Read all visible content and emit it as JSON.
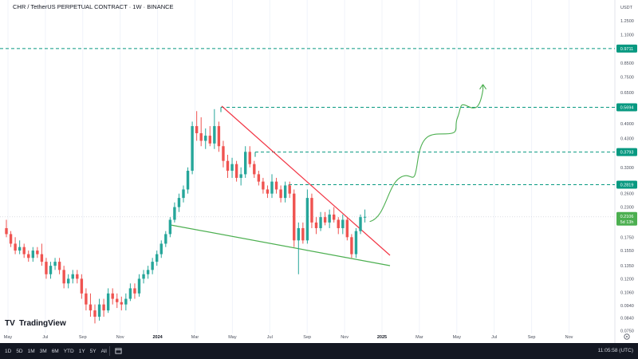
{
  "header": {
    "title": "CHR / TetherUS PERPETUAL CONTRACT · 1W · BINANCE",
    "currency": "USDT"
  },
  "brand": "TradingView",
  "timeframes": [
    "1D",
    "5D",
    "1M",
    "3M",
    "6M",
    "YTD",
    "1Y",
    "5Y",
    "All"
  ],
  "clock": "11:05:58 (UTC)",
  "colors": {
    "up": "#26a69a",
    "down": "#ef5350",
    "resistance": "#f23645",
    "support": "#4caf50",
    "level_line": "#089981",
    "projection": "#4caf50",
    "current_tag": "#4caf50"
  },
  "chart_data": {
    "type": "candlestick",
    "scale": "log",
    "ylim": [
      0.07,
      1.7
    ],
    "y_ticks": [
      "1.2500",
      "1.1000",
      "0.9711",
      "0.8500",
      "0.7500",
      "0.6500",
      "0.5694",
      "0.4900",
      "0.4300",
      "0.3793",
      "0.3300",
      "0.2819",
      "0.2600",
      "0.2300",
      "0.2106",
      "0.1750",
      "0.1550",
      "0.1350",
      "0.1200",
      "0.1060",
      "0.0940",
      "0.0840",
      "0.0750"
    ],
    "x_ticks": [
      "May",
      "Jul",
      "Sep",
      "Nov",
      "2024",
      "Mar",
      "May",
      "Jul",
      "Sep",
      "Nov",
      "2025",
      "Mar",
      "May",
      "Jul",
      "Sep",
      "Nov"
    ],
    "levels": [
      {
        "label": "0.9711",
        "value": 0.9711
      },
      {
        "label": "0.5694",
        "value": 0.5694
      },
      {
        "label": "0.3793",
        "value": 0.3793
      },
      {
        "label": "0.2819",
        "value": 0.2819
      }
    ],
    "current_price": {
      "label": "0.2106",
      "value": 0.2106,
      "countdown": "5d 13h"
    },
    "candles": [
      [
        0.19,
        0.205,
        0.175,
        0.18
      ],
      [
        0.18,
        0.185,
        0.16,
        0.165
      ],
      [
        0.165,
        0.175,
        0.15,
        0.155
      ],
      [
        0.155,
        0.17,
        0.15,
        0.16
      ],
      [
        0.16,
        0.165,
        0.145,
        0.15
      ],
      [
        0.15,
        0.155,
        0.14,
        0.145
      ],
      [
        0.145,
        0.16,
        0.14,
        0.155
      ],
      [
        0.155,
        0.16,
        0.145,
        0.15
      ],
      [
        0.15,
        0.165,
        0.135,
        0.14
      ],
      [
        0.14,
        0.145,
        0.12,
        0.125
      ],
      [
        0.125,
        0.14,
        0.12,
        0.135
      ],
      [
        0.135,
        0.145,
        0.13,
        0.14
      ],
      [
        0.14,
        0.145,
        0.125,
        0.13
      ],
      [
        0.13,
        0.135,
        0.11,
        0.115
      ],
      [
        0.115,
        0.125,
        0.11,
        0.12
      ],
      [
        0.12,
        0.13,
        0.115,
        0.125
      ],
      [
        0.125,
        0.13,
        0.115,
        0.12
      ],
      [
        0.12,
        0.125,
        0.1,
        0.105
      ],
      [
        0.105,
        0.11,
        0.09,
        0.095
      ],
      [
        0.095,
        0.105,
        0.085,
        0.09
      ],
      [
        0.09,
        0.095,
        0.08,
        0.085
      ],
      [
        0.085,
        0.1,
        0.082,
        0.095
      ],
      [
        0.095,
        0.1,
        0.085,
        0.09
      ],
      [
        0.09,
        0.11,
        0.088,
        0.105
      ],
      [
        0.105,
        0.11,
        0.095,
        0.1
      ],
      [
        0.1,
        0.105,
        0.092,
        0.097
      ],
      [
        0.097,
        0.102,
        0.09,
        0.095
      ],
      [
        0.095,
        0.105,
        0.09,
        0.1
      ],
      [
        0.1,
        0.115,
        0.098,
        0.11
      ],
      [
        0.11,
        0.115,
        0.1,
        0.105
      ],
      [
        0.105,
        0.125,
        0.102,
        0.12
      ],
      [
        0.12,
        0.13,
        0.115,
        0.125
      ],
      [
        0.125,
        0.135,
        0.12,
        0.13
      ],
      [
        0.13,
        0.145,
        0.125,
        0.14
      ],
      [
        0.14,
        0.155,
        0.135,
        0.15
      ],
      [
        0.15,
        0.17,
        0.145,
        0.165
      ],
      [
        0.165,
        0.185,
        0.16,
        0.18
      ],
      [
        0.18,
        0.21,
        0.175,
        0.205
      ],
      [
        0.205,
        0.24,
        0.2,
        0.23
      ],
      [
        0.23,
        0.26,
        0.22,
        0.25
      ],
      [
        0.25,
        0.28,
        0.24,
        0.27
      ],
      [
        0.27,
        0.33,
        0.26,
        0.32
      ],
      [
        0.32,
        0.5,
        0.31,
        0.48
      ],
      [
        0.48,
        0.55,
        0.42,
        0.45
      ],
      [
        0.45,
        0.52,
        0.4,
        0.42
      ],
      [
        0.42,
        0.47,
        0.39,
        0.44
      ],
      [
        0.44,
        0.48,
        0.4,
        0.41
      ],
      [
        0.41,
        0.56,
        0.39,
        0.48
      ],
      [
        0.48,
        0.5,
        0.38,
        0.4
      ],
      [
        0.4,
        0.42,
        0.33,
        0.35
      ],
      [
        0.35,
        0.37,
        0.3,
        0.32
      ],
      [
        0.32,
        0.36,
        0.3,
        0.34
      ],
      [
        0.34,
        0.35,
        0.29,
        0.3
      ],
      [
        0.3,
        0.33,
        0.28,
        0.31
      ],
      [
        0.31,
        0.4,
        0.3,
        0.38
      ],
      [
        0.38,
        0.4,
        0.33,
        0.34
      ],
      [
        0.34,
        0.35,
        0.3,
        0.31
      ],
      [
        0.31,
        0.32,
        0.28,
        0.29
      ],
      [
        0.29,
        0.3,
        0.26,
        0.27
      ],
      [
        0.27,
        0.28,
        0.25,
        0.26
      ],
      [
        0.26,
        0.31,
        0.25,
        0.29
      ],
      [
        0.29,
        0.3,
        0.26,
        0.27
      ],
      [
        0.27,
        0.28,
        0.24,
        0.25
      ],
      [
        0.25,
        0.29,
        0.24,
        0.28
      ],
      [
        0.28,
        0.29,
        0.25,
        0.26
      ],
      [
        0.26,
        0.27,
        0.16,
        0.17
      ],
      [
        0.17,
        0.2,
        0.125,
        0.19
      ],
      [
        0.19,
        0.2,
        0.165,
        0.17
      ],
      [
        0.17,
        0.27,
        0.165,
        0.25
      ],
      [
        0.25,
        0.26,
        0.19,
        0.2
      ],
      [
        0.2,
        0.21,
        0.18,
        0.19
      ],
      [
        0.19,
        0.22,
        0.185,
        0.21
      ],
      [
        0.21,
        0.22,
        0.195,
        0.2
      ],
      [
        0.2,
        0.225,
        0.19,
        0.215
      ],
      [
        0.215,
        0.23,
        0.2,
        0.205
      ],
      [
        0.205,
        0.21,
        0.18,
        0.19
      ],
      [
        0.19,
        0.215,
        0.18,
        0.205
      ],
      [
        0.205,
        0.21,
        0.17,
        0.175
      ],
      [
        0.175,
        0.18,
        0.145,
        0.15
      ],
      [
        0.15,
        0.19,
        0.145,
        0.185
      ],
      [
        0.185,
        0.215,
        0.18,
        0.21
      ],
      [
        0.21,
        0.225,
        0.2,
        0.2106
      ]
    ]
  }
}
